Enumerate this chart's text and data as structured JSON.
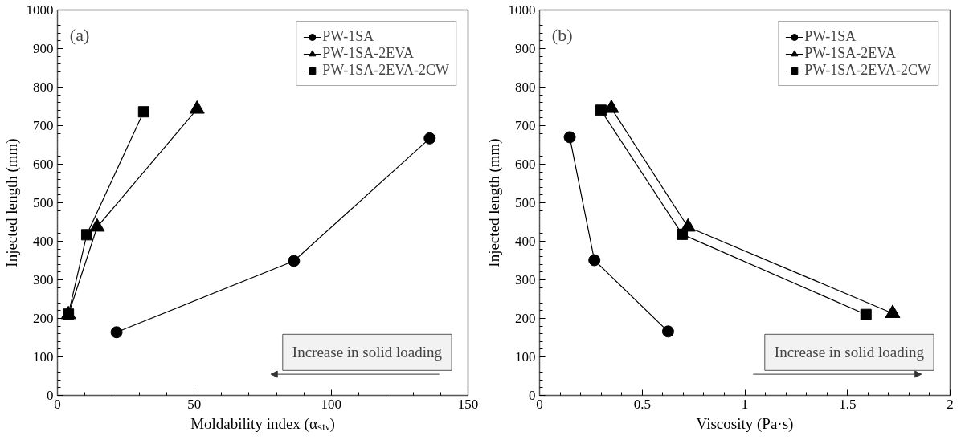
{
  "chart_data": [
    {
      "type": "line",
      "xlabel": "Moldability index (αₛₜᵥ)",
      "ylabel": "Injected length (mm)",
      "xlim": [
        0,
        150
      ],
      "xticks": [
        0,
        50,
        100,
        150
      ],
      "ylim": [
        0,
        1000
      ],
      "yticks": [
        0,
        100,
        200,
        300,
        400,
        500,
        600,
        700,
        800,
        900,
        1000
      ],
      "legend": "top right",
      "grid": false,
      "line_style": "solid",
      "annotations": [
        "(a)",
        "Increase in solid loading"
      ],
      "series": [
        {
          "name": "PW-1SA",
          "color": "#000000",
          "marker": "circle",
          "x": [
            21.6,
            86.4,
            136
          ],
          "values": [
            164,
            349,
            667
          ]
        },
        {
          "name": "PW-1SA-2EVA",
          "color": "#000000",
          "marker": "triangle",
          "x": [
            4,
            14.5,
            51
          ],
          "values": [
            210,
            437,
            743
          ]
        },
        {
          "name": "PW-1SA-2EVA-2CW",
          "color": "#000000",
          "marker": "square",
          "x": [
            4,
            10.7,
            31.5
          ],
          "values": [
            211,
            417,
            736
          ]
        }
      ]
    },
    {
      "type": "line",
      "xlabel": "Viscosity (Pa·s)",
      "ylabel": "Injected length (mm)",
      "xlim": [
        0,
        2
      ],
      "xticks": [
        0,
        0.5,
        1,
        1.5,
        2
      ],
      "ylim": [
        0,
        1000
      ],
      "yticks": [
        0,
        100,
        200,
        300,
        400,
        500,
        600,
        700,
        800,
        900,
        1000
      ],
      "legend": "top right",
      "grid": false,
      "line_style": "solid",
      "annotations": [
        "(b)",
        "Increase in solid loading"
      ],
      "series": [
        {
          "name": "PW-1SA",
          "color": "#000000",
          "marker": "circle",
          "x": [
            0.147,
            0.267,
            0.626
          ],
          "values": [
            670,
            351,
            166
          ]
        },
        {
          "name": "PW-1SA-2EVA",
          "color": "#000000",
          "marker": "triangle",
          "x": [
            0.35,
            0.723,
            1.72
          ],
          "values": [
            745,
            437,
            213
          ]
        },
        {
          "name": "PW-1SA-2EVA-2CW",
          "color": "#000000",
          "marker": "square",
          "x": [
            0.299,
            0.695,
            1.59
          ],
          "values": [
            740,
            418,
            210
          ]
        }
      ]
    }
  ]
}
